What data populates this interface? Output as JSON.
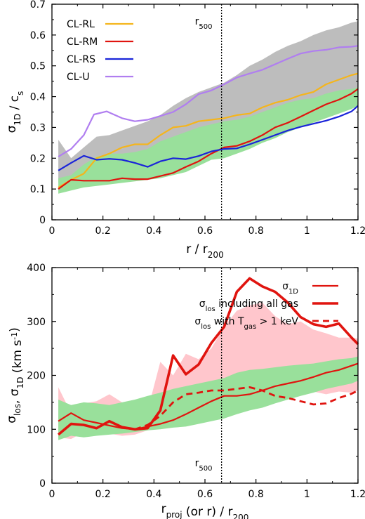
{
  "chart_data": [
    {
      "type": "line",
      "xlabel": {
        "main": "r / r",
        "sub": "200"
      },
      "ylabel": {
        "main": "σ",
        "sub": "1D",
        "mid": " / c",
        "sub2": "s"
      },
      "xlim": [
        0,
        1.2
      ],
      "ylim": [
        0,
        0.7
      ],
      "xticks": [
        "0",
        "0.2",
        "0.4",
        "0.6",
        "0.8",
        "1",
        "1.2"
      ],
      "yticks": [
        "0",
        "0.1",
        "0.2",
        "0.3",
        "0.4",
        "0.5",
        "0.6",
        "0.7"
      ],
      "legend_position": "top-left",
      "vline": {
        "x": 0.665,
        "label_main": "r",
        "label_sub": "500"
      },
      "series": [
        {
          "name": "CL-RL",
          "color": "#f5b51c",
          "width": 2.2,
          "x": [
            0.025,
            0.075,
            0.125,
            0.175,
            0.225,
            0.275,
            0.325,
            0.375,
            0.425,
            0.475,
            0.525,
            0.575,
            0.625,
            0.675,
            0.725,
            0.775,
            0.825,
            0.875,
            0.925,
            0.975,
            1.025,
            1.075,
            1.125,
            1.175,
            1.2
          ],
          "values": [
            0.105,
            0.13,
            0.15,
            0.2,
            0.215,
            0.235,
            0.245,
            0.245,
            0.275,
            0.3,
            0.305,
            0.32,
            0.325,
            0.33,
            0.34,
            0.345,
            0.365,
            0.38,
            0.39,
            0.405,
            0.415,
            0.44,
            0.455,
            0.47,
            0.475
          ]
        },
        {
          "name": "CL-RM",
          "color": "#e0140f",
          "width": 2.2,
          "x": [
            0.025,
            0.075,
            0.125,
            0.175,
            0.225,
            0.275,
            0.325,
            0.375,
            0.425,
            0.475,
            0.525,
            0.575,
            0.625,
            0.675,
            0.725,
            0.775,
            0.825,
            0.875,
            0.925,
            0.975,
            1.025,
            1.075,
            1.125,
            1.175,
            1.2
          ],
          "values": [
            0.1,
            0.13,
            0.127,
            0.127,
            0.127,
            0.135,
            0.132,
            0.132,
            0.142,
            0.152,
            0.172,
            0.19,
            0.215,
            0.235,
            0.24,
            0.255,
            0.275,
            0.3,
            0.315,
            0.335,
            0.355,
            0.375,
            0.39,
            0.41,
            0.425
          ]
        },
        {
          "name": "CL-RS",
          "color": "#1a24d9",
          "width": 2.2,
          "x": [
            0.025,
            0.075,
            0.125,
            0.175,
            0.225,
            0.275,
            0.325,
            0.375,
            0.425,
            0.475,
            0.525,
            0.575,
            0.625,
            0.675,
            0.725,
            0.775,
            0.825,
            0.875,
            0.925,
            0.975,
            1.025,
            1.075,
            1.125,
            1.175,
            1.2
          ],
          "values": [
            0.16,
            0.185,
            0.208,
            0.195,
            0.198,
            0.195,
            0.185,
            0.172,
            0.19,
            0.2,
            0.197,
            0.207,
            0.222,
            0.23,
            0.232,
            0.245,
            0.26,
            0.275,
            0.29,
            0.302,
            0.312,
            0.322,
            0.335,
            0.352,
            0.37
          ]
        },
        {
          "name": "CL-U",
          "color": "#b07ef0",
          "width": 2.2,
          "x": [
            0.025,
            0.075,
            0.125,
            0.165,
            0.215,
            0.275,
            0.325,
            0.375,
            0.425,
            0.475,
            0.525,
            0.575,
            0.625,
            0.675,
            0.725,
            0.775,
            0.825,
            0.875,
            0.925,
            0.975,
            1.025,
            1.075,
            1.125,
            1.175,
            1.2
          ],
          "values": [
            0.205,
            0.23,
            0.275,
            0.342,
            0.352,
            0.33,
            0.32,
            0.325,
            0.337,
            0.35,
            0.375,
            0.408,
            0.42,
            0.44,
            0.462,
            0.475,
            0.487,
            0.505,
            0.523,
            0.54,
            0.548,
            0.552,
            0.56,
            0.562,
            0.565
          ]
        }
      ],
      "bands": [
        {
          "color": "#bdbdbd",
          "x": [
            0.025,
            0.075,
            0.125,
            0.175,
            0.225,
            0.275,
            0.325,
            0.375,
            0.425,
            0.475,
            0.525,
            0.575,
            0.625,
            0.675,
            0.725,
            0.775,
            0.825,
            0.875,
            0.925,
            0.975,
            1.025,
            1.075,
            1.125,
            1.175,
            1.2
          ],
          "lower": [
            0.12,
            0.115,
            0.13,
            0.155,
            0.165,
            0.185,
            0.2,
            0.21,
            0.225,
            0.24,
            0.25,
            0.255,
            0.27,
            0.3,
            0.31,
            0.325,
            0.335,
            0.345,
            0.36,
            0.37,
            0.385,
            0.395,
            0.4,
            0.405,
            0.41
          ],
          "upper": [
            0.26,
            0.2,
            0.235,
            0.27,
            0.275,
            0.29,
            0.305,
            0.32,
            0.34,
            0.37,
            0.395,
            0.415,
            0.43,
            0.445,
            0.47,
            0.5,
            0.52,
            0.545,
            0.565,
            0.58,
            0.6,
            0.615,
            0.625,
            0.64,
            0.645
          ]
        },
        {
          "color": "#99e09b",
          "x": [
            0.025,
            0.075,
            0.125,
            0.175,
            0.225,
            0.275,
            0.325,
            0.375,
            0.425,
            0.475,
            0.525,
            0.575,
            0.625,
            0.675,
            0.725,
            0.775,
            0.825,
            0.875,
            0.925,
            0.975,
            1.025,
            1.075,
            1.125,
            1.175,
            1.2
          ],
          "lower": [
            0.085,
            0.095,
            0.105,
            0.11,
            0.115,
            0.12,
            0.125,
            0.13,
            0.135,
            0.145,
            0.155,
            0.175,
            0.195,
            0.2,
            0.215,
            0.23,
            0.25,
            0.265,
            0.285,
            0.3,
            0.315,
            0.33,
            0.345,
            0.36,
            0.37
          ],
          "upper": [
            0.135,
            0.145,
            0.18,
            0.205,
            0.215,
            0.215,
            0.22,
            0.23,
            0.255,
            0.27,
            0.285,
            0.3,
            0.31,
            0.32,
            0.325,
            0.335,
            0.35,
            0.365,
            0.38,
            0.39,
            0.395,
            0.41,
            0.42,
            0.425,
            0.43
          ]
        }
      ]
    },
    {
      "type": "line",
      "xlabel": {
        "main": "r",
        "sub": "proj",
        "mid": " (or r) / r",
        "sub2": "200"
      },
      "ylabel": {
        "main": "σ",
        "sub": "los",
        "mid": ", σ",
        "sub2": "1D",
        "tail": " (km s",
        "sup": "-1",
        "end": ")"
      },
      "xlim": [
        0,
        1.2
      ],
      "ylim": [
        0,
        400
      ],
      "xticks": [
        "0",
        "0.2",
        "0.4",
        "0.6",
        "0.8",
        "1",
        "1.2"
      ],
      "yticks": [
        "0",
        "100",
        "200",
        "300",
        "400"
      ],
      "legend_position": "top-right",
      "vline": {
        "x": 0.665,
        "label_main": "r",
        "label_sub": "500"
      },
      "series": [
        {
          "name": "σ",
          "name_sub": "1D",
          "color": "#e0140f",
          "width": 2.2,
          "dash": "",
          "x": [
            0.025,
            0.075,
            0.125,
            0.175,
            0.225,
            0.275,
            0.325,
            0.375,
            0.425,
            0.475,
            0.525,
            0.575,
            0.625,
            0.675,
            0.725,
            0.775,
            0.825,
            0.875,
            0.925,
            0.975,
            1.025,
            1.075,
            1.125,
            1.175,
            1.2
          ],
          "values": [
            115,
            130,
            117,
            112,
            107,
            102,
            100,
            105,
            110,
            117,
            128,
            140,
            152,
            162,
            162,
            165,
            172,
            180,
            185,
            190,
            197,
            205,
            210,
            218,
            222
          ]
        },
        {
          "name": "σ",
          "name_sub": "los",
          "name_tail": " including all gas",
          "color": "#e0140f",
          "width": 3.6,
          "dash": "",
          "x": [
            0.025,
            0.075,
            0.125,
            0.175,
            0.225,
            0.275,
            0.325,
            0.375,
            0.425,
            0.475,
            0.525,
            0.575,
            0.625,
            0.675,
            0.725,
            0.775,
            0.825,
            0.875,
            0.925,
            0.975,
            1.025,
            1.075,
            1.125,
            1.175,
            1.2
          ],
          "values": [
            90,
            110,
            108,
            102,
            115,
            104,
            100,
            102,
            135,
            237,
            202,
            220,
            260,
            290,
            355,
            380,
            365,
            355,
            335,
            308,
            295,
            290,
            296,
            270,
            258
          ]
        },
        {
          "name": "σ",
          "name_sub": "los",
          "name_tail": " with T",
          "name_sub2": "gas",
          "name_end": " > 1 keV",
          "color": "#e0140f",
          "width": 2.8,
          "dash": "9,6",
          "x": [
            0.325,
            0.375,
            0.425,
            0.475,
            0.525,
            0.575,
            0.625,
            0.675,
            0.725,
            0.775,
            0.825,
            0.875,
            0.925,
            0.975,
            1.025,
            1.075,
            1.125,
            1.175,
            1.2
          ],
          "values": [
            100,
            108,
            125,
            150,
            165,
            168,
            172,
            172,
            175,
            178,
            172,
            162,
            158,
            152,
            146,
            148,
            158,
            166,
            172
          ]
        }
      ],
      "bands": [
        {
          "color": "#ffc6cc",
          "x": [
            0.025,
            0.075,
            0.125,
            0.175,
            0.225,
            0.275,
            0.325,
            0.375,
            0.425,
            0.475,
            0.525,
            0.575,
            0.625,
            0.675,
            0.725,
            0.775,
            0.825,
            0.875,
            0.925,
            0.975,
            1.025,
            1.075,
            1.125,
            1.175,
            1.2
          ],
          "lower": [
            85,
            82,
            95,
            92,
            92,
            88,
            90,
            98,
            102,
            110,
            125,
            135,
            142,
            150,
            155,
            150,
            155,
            165,
            160,
            165,
            170,
            165,
            170,
            168,
            172
          ],
          "upper": [
            178,
            130,
            148,
            152,
            165,
            150,
            140,
            135,
            225,
            200,
            240,
            230,
            250,
            290,
            320,
            330,
            335,
            310,
            295,
            300,
            285,
            278,
            270,
            270,
            268
          ]
        },
        {
          "color": "#99e09b",
          "x": [
            0.025,
            0.075,
            0.125,
            0.175,
            0.225,
            0.275,
            0.325,
            0.375,
            0.425,
            0.475,
            0.525,
            0.575,
            0.625,
            0.675,
            0.725,
            0.775,
            0.825,
            0.875,
            0.925,
            0.975,
            1.025,
            1.075,
            1.125,
            1.175,
            1.2
          ],
          "lower": [
            80,
            88,
            85,
            88,
            90,
            92,
            95,
            98,
            100,
            103,
            105,
            110,
            115,
            120,
            128,
            135,
            140,
            148,
            155,
            162,
            168,
            175,
            180,
            185,
            190
          ],
          "upper": [
            155,
            145,
            150,
            148,
            145,
            150,
            155,
            162,
            168,
            175,
            180,
            185,
            190,
            195,
            205,
            210,
            212,
            215,
            218,
            220,
            222,
            226,
            230,
            232,
            235
          ]
        }
      ]
    }
  ]
}
